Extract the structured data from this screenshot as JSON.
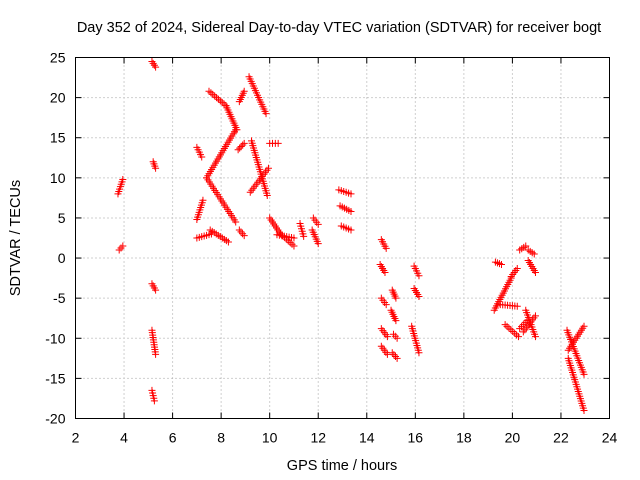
{
  "chart_data": {
    "type": "scatter",
    "title": "Day 352 of 2024, Sidereal Day-to-day VTEC variation (SDTVAR) for receiver bogt",
    "xlabel": "GPS time / hours",
    "ylabel": "SDTVAR / TECUs",
    "xlim": [
      2,
      24
    ],
    "ylim": [
      -20,
      25
    ],
    "xticks": [
      "2",
      "4",
      "6",
      "8",
      "10",
      "12",
      "14",
      "16",
      "18",
      "20",
      "22",
      "24"
    ],
    "yticks": [
      "25",
      "20",
      "15",
      "10",
      "5",
      "0",
      "-5",
      "-10",
      "-15",
      "-20"
    ],
    "grid": true,
    "marker": "+",
    "color": "#ff0000",
    "segments": [
      {
        "x": [
          3.75,
          3.95
        ],
        "y": [
          8.0,
          9.8
        ]
      },
      {
        "x": [
          3.8,
          3.95
        ],
        "y": [
          1.0,
          1.5
        ]
      },
      {
        "x": [
          5.15,
          5.3
        ],
        "y": [
          24.5,
          23.8
        ]
      },
      {
        "x": [
          5.2,
          5.3
        ],
        "y": [
          12.0,
          11.2
        ]
      },
      {
        "x": [
          5.15,
          5.3
        ],
        "y": [
          -3.2,
          -4.0
        ]
      },
      {
        "x": [
          5.15,
          5.3
        ],
        "y": [
          -9.0,
          -12.0
        ]
      },
      {
        "x": [
          5.15,
          5.25
        ],
        "y": [
          -16.5,
          -17.8
        ]
      },
      {
        "x": [
          7.0,
          7.2
        ],
        "y": [
          13.8,
          12.6
        ]
      },
      {
        "x": [
          7.0,
          7.25
        ],
        "y": [
          4.8,
          7.2
        ]
      },
      {
        "x": [
          7.0,
          7.6
        ],
        "y": [
          2.5,
          3.0
        ]
      },
      {
        "x": [
          7.55,
          8.3
        ],
        "y": [
          3.5,
          2.0
        ]
      },
      {
        "x": [
          7.5,
          8.2
        ],
        "y": [
          20.8,
          19.0
        ]
      },
      {
        "x": [
          8.2,
          8.65
        ],
        "y": [
          19.0,
          16.0
        ]
      },
      {
        "x": [
          8.6,
          7.4
        ],
        "y": [
          16.0,
          10.0
        ]
      },
      {
        "x": [
          7.4,
          8.6
        ],
        "y": [
          10.0,
          4.5
        ]
      },
      {
        "x": [
          8.75,
          8.95
        ],
        "y": [
          19.5,
          20.8
        ]
      },
      {
        "x": [
          8.7,
          8.95
        ],
        "y": [
          13.5,
          14.3
        ]
      },
      {
        "x": [
          8.75,
          8.95
        ],
        "y": [
          3.5,
          2.8
        ]
      },
      {
        "x": [
          9.15,
          9.85
        ],
        "y": [
          22.6,
          18.0
        ]
      },
      {
        "x": [
          9.25,
          9.9
        ],
        "y": [
          14.6,
          7.8
        ]
      },
      {
        "x": [
          9.2,
          9.95
        ],
        "y": [
          8.2,
          11.2
        ]
      },
      {
        "x": [
          10.0,
          10.35
        ],
        "y": [
          14.3,
          14.3
        ]
      },
      {
        "x": [
          10.0,
          10.45
        ],
        "y": [
          5.0,
          3.0
        ]
      },
      {
        "x": [
          10.45,
          11.0
        ],
        "y": [
          3.0,
          1.5
        ]
      },
      {
        "x": [
          10.3,
          11.0
        ],
        "y": [
          2.9,
          2.5
        ]
      },
      {
        "x": [
          11.25,
          11.4
        ],
        "y": [
          4.3,
          2.7
        ]
      },
      {
        "x": [
          11.8,
          12.0
        ],
        "y": [
          5.0,
          4.2
        ]
      },
      {
        "x": [
          11.75,
          12.0
        ],
        "y": [
          3.5,
          1.8
        ]
      },
      {
        "x": [
          12.85,
          13.35
        ],
        "y": [
          8.5,
          8.0
        ]
      },
      {
        "x": [
          12.9,
          13.35
        ],
        "y": [
          6.5,
          5.8
        ]
      },
      {
        "x": [
          12.95,
          13.35
        ],
        "y": [
          4.0,
          3.5
        ]
      },
      {
        "x": [
          14.6,
          14.8
        ],
        "y": [
          2.3,
          1.2
        ]
      },
      {
        "x": [
          14.55,
          14.75
        ],
        "y": [
          -0.8,
          -1.8
        ]
      },
      {
        "x": [
          14.6,
          14.8
        ],
        "y": [
          -5.0,
          -5.8
        ]
      },
      {
        "x": [
          14.6,
          14.85
        ],
        "y": [
          -8.8,
          -9.8
        ]
      },
      {
        "x": [
          14.6,
          14.85
        ],
        "y": [
          -11.0,
          -12.0
        ]
      },
      {
        "x": [
          15.05,
          15.2
        ],
        "y": [
          -4.0,
          -5.0
        ]
      },
      {
        "x": [
          15.0,
          15.2
        ],
        "y": [
          -6.5,
          -7.8
        ]
      },
      {
        "x": [
          15.1,
          15.25
        ],
        "y": [
          -9.5,
          -10.0
        ]
      },
      {
        "x": [
          15.05,
          15.25
        ],
        "y": [
          -11.8,
          -12.5
        ]
      },
      {
        "x": [
          15.95,
          16.15
        ],
        "y": [
          -1.0,
          -2.2
        ]
      },
      {
        "x": [
          15.95,
          16.15
        ],
        "y": [
          -3.8,
          -4.8
        ]
      },
      {
        "x": [
          15.85,
          16.15
        ],
        "y": [
          -8.5,
          -11.8
        ]
      },
      {
        "x": [
          19.3,
          19.55
        ],
        "y": [
          -0.5,
          -0.8
        ]
      },
      {
        "x": [
          19.25,
          19.95
        ],
        "y": [
          -6.5,
          -2.5
        ]
      },
      {
        "x": [
          19.95,
          20.2
        ],
        "y": [
          -2.3,
          -1.3
        ]
      },
      {
        "x": [
          19.5,
          20.2
        ],
        "y": [
          -5.8,
          -6.0
        ]
      },
      {
        "x": [
          19.7,
          20.25
        ],
        "y": [
          -8.3,
          -9.8
        ]
      },
      {
        "x": [
          20.3,
          20.6
        ],
        "y": [
          -8.8,
          -7.8
        ]
      },
      {
        "x": [
          20.3,
          20.55
        ],
        "y": [
          1.0,
          1.5
        ]
      },
      {
        "x": [
          20.65,
          20.9
        ],
        "y": [
          1.0,
          0.5
        ]
      },
      {
        "x": [
          20.65,
          20.95
        ],
        "y": [
          -0.3,
          -1.8
        ]
      },
      {
        "x": [
          20.55,
          20.95
        ],
        "y": [
          -6.5,
          -9.8
        ]
      },
      {
        "x": [
          20.45,
          20.95
        ],
        "y": [
          -9.2,
          -7.2
        ]
      },
      {
        "x": [
          22.25,
          22.95
        ],
        "y": [
          -9.0,
          -14.5
        ]
      },
      {
        "x": [
          22.3,
          22.95
        ],
        "y": [
          -11.5,
          -8.5
        ]
      },
      {
        "x": [
          22.3,
          22.95
        ],
        "y": [
          -12.5,
          -19.0
        ]
      }
    ]
  }
}
